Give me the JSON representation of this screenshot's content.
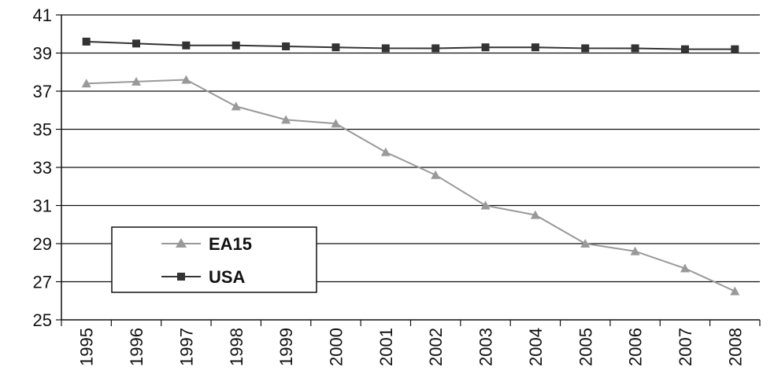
{
  "chart_data": {
    "type": "line",
    "title": "",
    "xlabel": "",
    "ylabel": "",
    "x": [
      "1995",
      "1996",
      "1997",
      "1998",
      "1999",
      "2000",
      "2001",
      "2002",
      "2003",
      "2004",
      "2005",
      "2006",
      "2007",
      "2008"
    ],
    "ylim": [
      25,
      41
    ],
    "yticks": [
      "25",
      "27",
      "29",
      "31",
      "33",
      "35",
      "37",
      "39",
      "41"
    ],
    "grid": true,
    "legend": "lower-left",
    "series": [
      {
        "name": "EA15",
        "marker": "triangle",
        "color": "#999999",
        "values": [
          37.4,
          37.5,
          37.6,
          36.2,
          35.5,
          35.3,
          33.8,
          32.6,
          31.0,
          30.5,
          29.0,
          28.6,
          27.7,
          26.5
        ]
      },
      {
        "name": "USA",
        "marker": "square",
        "color": "#333333",
        "values": [
          39.6,
          39.5,
          39.4,
          39.4,
          39.35,
          39.3,
          39.25,
          39.25,
          39.3,
          39.3,
          39.25,
          39.25,
          39.2,
          39.2
        ]
      }
    ]
  }
}
